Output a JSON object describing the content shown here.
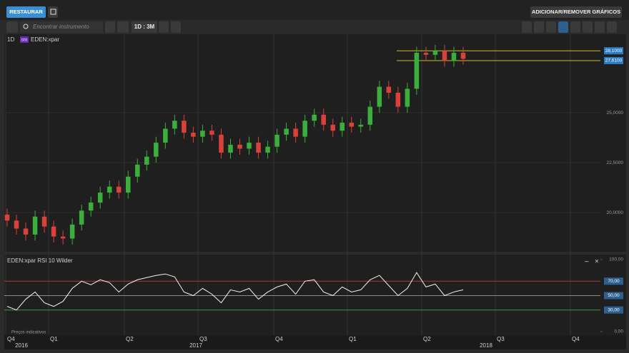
{
  "ui": {
    "restore_button": "RESTAURAR",
    "add_remove_button": "ADICIONAR/REMOVER GRÁFICOS",
    "search_placeholder": "Encontrar instrumento",
    "period_button": "1D : 3M",
    "interval": "1D",
    "badge": "cro",
    "instrument": "EDEN:xpar",
    "indicator_title": "EDEN:xpar  RSI 10 Wilder",
    "footnote": "Preços indicativos",
    "quarters": [
      "Q4",
      "Q1",
      "Q2",
      "Q3",
      "Q4",
      "Q1",
      "Q2",
      "Q3",
      "Q4"
    ],
    "years": [
      "2016",
      "2017",
      "2018"
    ]
  },
  "chart_data": [
    {
      "type": "candlestick",
      "up_color": "#3cae3c",
      "down_color": "#d9413a",
      "open": [
        19.9,
        19.6,
        19.2,
        18.9,
        19.8,
        19.3,
        18.8,
        18.7,
        19.4,
        20.1,
        20.5,
        21.0,
        21.3,
        21.0,
        21.8,
        22.4,
        22.8,
        23.5,
        24.2,
        24.6,
        24.0,
        23.8,
        24.1,
        23.9,
        23.0,
        23.4,
        23.2,
        23.5,
        23.0,
        23.3,
        23.9,
        24.2,
        23.8,
        24.6,
        24.9,
        24.4,
        24.1,
        24.5,
        24.3,
        24.4,
        25.3,
        26.3,
        26.0,
        25.3,
        26.2,
        28.0,
        27.9,
        28.1,
        27.6,
        28.0
      ],
      "high": [
        20.2,
        19.9,
        19.5,
        20.1,
        20.1,
        19.6,
        19.1,
        19.7,
        20.4,
        20.8,
        21.3,
        21.6,
        21.6,
        22.1,
        22.7,
        23.1,
        23.8,
        24.5,
        24.9,
        24.9,
        24.3,
        24.4,
        24.4,
        24.2,
        23.7,
        23.7,
        23.8,
        23.8,
        23.6,
        24.2,
        24.5,
        24.5,
        24.9,
        25.2,
        25.2,
        24.7,
        24.8,
        24.8,
        24.7,
        25.6,
        26.6,
        26.6,
        26.3,
        26.5,
        28.3,
        28.3,
        28.4,
        28.4,
        28.3,
        28.3
      ],
      "low": [
        19.3,
        18.9,
        18.6,
        18.6,
        19.0,
        18.5,
        18.4,
        18.4,
        19.1,
        19.8,
        20.2,
        20.7,
        20.7,
        20.7,
        21.5,
        22.1,
        22.5,
        23.2,
        23.9,
        23.7,
        23.5,
        23.5,
        23.6,
        22.7,
        22.7,
        22.9,
        22.9,
        22.7,
        22.7,
        23.0,
        23.6,
        23.5,
        23.5,
        24.3,
        24.1,
        23.8,
        23.8,
        24.0,
        24.0,
        24.1,
        25.0,
        25.7,
        25.0,
        25.0,
        25.9,
        27.6,
        27.6,
        27.3,
        27.3,
        27.4
      ],
      "close": [
        19.6,
        19.2,
        18.9,
        19.8,
        19.3,
        18.8,
        18.7,
        19.4,
        20.1,
        20.5,
        21.0,
        21.3,
        21.0,
        21.8,
        22.4,
        22.8,
        23.5,
        24.2,
        24.6,
        24.0,
        23.8,
        24.1,
        23.9,
        23.0,
        23.4,
        23.2,
        23.5,
        23.0,
        23.3,
        23.9,
        24.2,
        23.8,
        24.6,
        24.9,
        24.4,
        24.1,
        24.5,
        24.3,
        24.4,
        25.3,
        26.3,
        26.0,
        25.3,
        26.2,
        28.0,
        27.9,
        28.1,
        27.6,
        28.0,
        27.7
      ],
      "ylim": [
        18.04,
        28.93
      ],
      "yticks": [
        {
          "value": 20,
          "label": "20,0000"
        },
        {
          "value": 22.5,
          "label": "22,5000"
        },
        {
          "value": 25,
          "label": "25,0000"
        }
      ],
      "hlines": [
        {
          "value": 28.1,
          "label": "28,1000",
          "color": "#c8b92a"
        },
        {
          "value": 27.61,
          "label": "27,6100",
          "color": "#c8b92a"
        }
      ]
    },
    {
      "type": "line",
      "series": [
        {
          "name": "EDEN:xpar  RSI 10 Wilder",
          "color": "#f2f2f2",
          "values": [
            35,
            30,
            45,
            55,
            40,
            35,
            42,
            60,
            70,
            65,
            72,
            68,
            55,
            66,
            72,
            75,
            78,
            80,
            76,
            55,
            50,
            60,
            52,
            40,
            58,
            55,
            60,
            45,
            55,
            62,
            66,
            52,
            70,
            72,
            55,
            50,
            62,
            55,
            58,
            72,
            78,
            64,
            50,
            60,
            82,
            62,
            66,
            50,
            55,
            58
          ]
        }
      ],
      "ylim": [
        0,
        100
      ],
      "yticks": [
        {
          "value": 0,
          "label": "0,00"
        },
        {
          "value": 100,
          "label": "100,00"
        }
      ],
      "hlines": [
        {
          "value": 70,
          "label": "70,00",
          "color": "#b03a32"
        },
        {
          "value": 50,
          "label": "50,00",
          "color": "#8a8a8a"
        },
        {
          "value": 30,
          "label": "30,00",
          "color": "#3a9a3a"
        }
      ]
    }
  ]
}
